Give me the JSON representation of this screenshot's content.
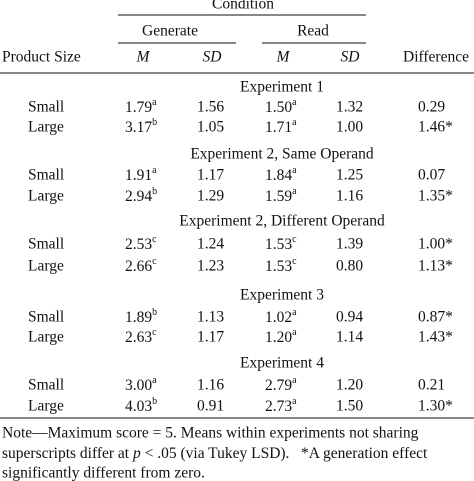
{
  "header": {
    "condition": "Condition",
    "generate": "Generate",
    "read": "Read",
    "product_size": "Product Size",
    "m1": "M",
    "sd1": "SD",
    "m2": "M",
    "sd2": "SD",
    "difference": "Difference"
  },
  "sections": [
    {
      "title": "Experiment 1",
      "rows": [
        {
          "size": "Small",
          "gen_m": {
            "value": "1.79",
            "sup": "a"
          },
          "gen_sd": "1.56",
          "read_m": {
            "value": "1.50",
            "sup": "a"
          },
          "read_sd": "1.32",
          "difference": "0.29"
        },
        {
          "size": "Large",
          "gen_m": {
            "value": "3.17",
            "sup": "b"
          },
          "gen_sd": "1.05",
          "read_m": {
            "value": "1.71",
            "sup": "a"
          },
          "read_sd": "1.00",
          "difference": "1.46*"
        }
      ]
    },
    {
      "title": "Experiment 2, Same Operand",
      "rows": [
        {
          "size": "Small",
          "gen_m": {
            "value": "1.91",
            "sup": "a"
          },
          "gen_sd": "1.17",
          "read_m": {
            "value": "1.84",
            "sup": "a"
          },
          "read_sd": "1.25",
          "difference": "0.07"
        },
        {
          "size": "Large",
          "gen_m": {
            "value": "2.94",
            "sup": "b"
          },
          "gen_sd": "1.29",
          "read_m": {
            "value": "1.59",
            "sup": "a"
          },
          "read_sd": "1.16",
          "difference": "1.35*"
        }
      ]
    },
    {
      "title": "Experiment 2, Different Operand",
      "rows": [
        {
          "size": "Small",
          "gen_m": {
            "value": "2.53",
            "sup": "c"
          },
          "gen_sd": "1.24",
          "read_m": {
            "value": "1.53",
            "sup": "c"
          },
          "read_sd": "1.39",
          "difference": "1.00*"
        },
        {
          "size": "Large",
          "gen_m": {
            "value": "2.66",
            "sup": "c"
          },
          "gen_sd": "1.23",
          "read_m": {
            "value": "1.53",
            "sup": "c"
          },
          "read_sd": "0.80",
          "difference": "1.13*"
        }
      ]
    },
    {
      "title": "Experiment 3",
      "rows": [
        {
          "size": "Small",
          "gen_m": {
            "value": "1.89",
            "sup": "b"
          },
          "gen_sd": "1.13",
          "read_m": {
            "value": "1.02",
            "sup": "a"
          },
          "read_sd": "0.94",
          "difference": "0.87*"
        },
        {
          "size": "Large",
          "gen_m": {
            "value": "2.63",
            "sup": "c"
          },
          "gen_sd": "1.17",
          "read_m": {
            "value": "1.20",
            "sup": "a"
          },
          "read_sd": "1.14",
          "difference": "1.43*"
        }
      ]
    },
    {
      "title": "Experiment 4",
      "rows": [
        {
          "size": "Small",
          "gen_m": {
            "value": "3.00",
            "sup": "a"
          },
          "gen_sd": "1.16",
          "read_m": {
            "value": "2.79",
            "sup": "a"
          },
          "read_sd": "1.20",
          "difference": "0.21"
        },
        {
          "size": "Large",
          "gen_m": {
            "value": "4.03",
            "sup": "b"
          },
          "gen_sd": "0.91",
          "read_m": {
            "value": "2.73",
            "sup": "a"
          },
          "read_sd": "1.50",
          "difference": "1.30*"
        }
      ]
    }
  ],
  "note": {
    "line1": "Note—Maximum score = 5. Means within experiments not sharing",
    "line2_before": "superscripts differ at ",
    "line2_italic": "p",
    "line2_after": " < .05 (via Tukey LSD).   *A generation effect",
    "line3": "significantly different from zero."
  }
}
